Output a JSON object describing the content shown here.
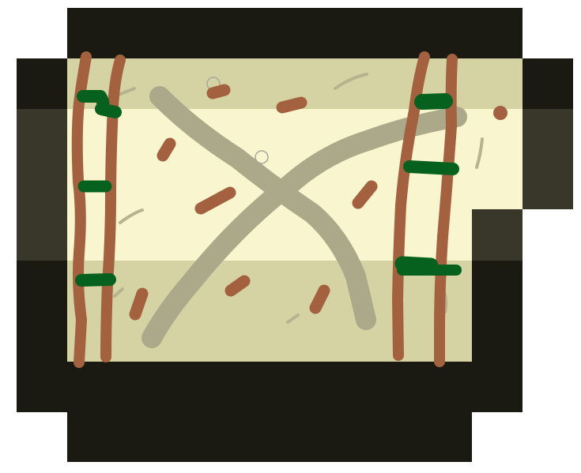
{
  "colors": {
    "background": "#ffffff",
    "wall_dark": "#1a1a12",
    "wall_medium": "#38372a",
    "floor_light": "#f8f5cf",
    "floor_medium": "#d5d3a4",
    "path_gray": "#aca98a",
    "brown": "#a3613f",
    "green": "#07611e",
    "crack_gray": "#b6b38e",
    "circle_gray": "#a8a89a"
  },
  "map": {
    "floor_tiles": [
      "floor-light-band",
      "floor-medium-top",
      "floor-medium-bottom"
    ],
    "wall_tiles": [
      "wall-top",
      "wall-left-upper",
      "wall-left-middle",
      "wall-left-lower",
      "wall-right-upper",
      "wall-right-middle",
      "wall-right-step",
      "wall-right-lower",
      "wall-bottom",
      "wall-bottom-base"
    ]
  },
  "sprites": {
    "ladders": [
      "ladder-left-a",
      "ladder-left-b",
      "ladder-right-a",
      "ladder-right-b"
    ],
    "vines": 7,
    "rubble": 11,
    "circles": 2
  }
}
